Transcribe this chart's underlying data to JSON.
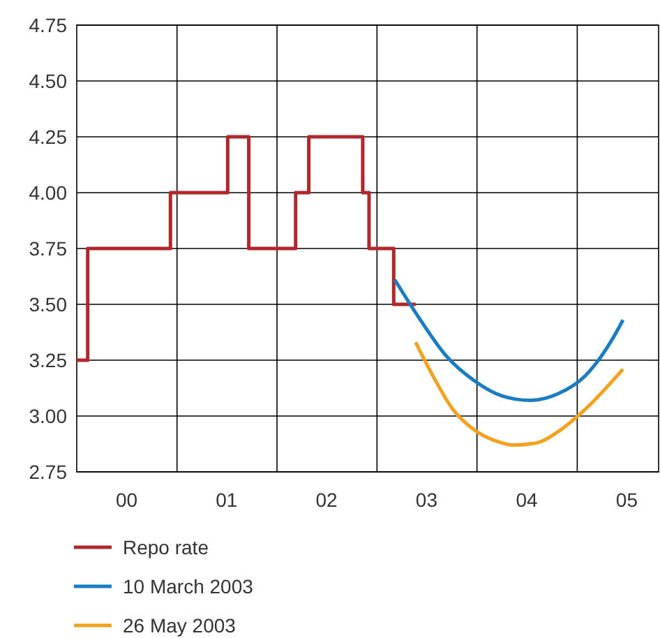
{
  "chart_data": {
    "type": "line",
    "xlim": [
      "2000-01-01",
      "2005-10-25"
    ],
    "ylim": [
      2.75,
      4.75
    ],
    "xticks": [
      {
        "value": "2000-07-01",
        "label": "00"
      },
      {
        "value": "2001-01-01",
        "label": null
      },
      {
        "value": "2001-07-01",
        "label": "01"
      },
      {
        "value": "2002-01-01",
        "label": null
      },
      {
        "value": "2002-07-01",
        "label": "02"
      },
      {
        "value": "2003-01-01",
        "label": null
      },
      {
        "value": "2003-07-01",
        "label": "03"
      },
      {
        "value": "2004-01-01",
        "label": null
      },
      {
        "value": "2004-07-01",
        "label": "04"
      },
      {
        "value": "2005-01-01",
        "label": null
      },
      {
        "value": "2005-07-01",
        "label": "05"
      }
    ],
    "yticks": [
      2.75,
      {
        "value": 3,
        "label": "3.00"
      },
      3.25,
      {
        "value": 3.5,
        "label": "3.50"
      },
      3.75,
      {
        "value": 4,
        "label": "4.00"
      },
      4.25,
      {
        "value": 4.5,
        "label": "4.50"
      },
      4.75
    ],
    "grid": true,
    "legend": "bottom",
    "line_style": "solid",
    "marker": "none",
    "series": [
      {
        "name": "Repo rate",
        "type": "step",
        "color": "#b0282c",
        "x": [
          "2000-01-01",
          "2000-02-10",
          "2000-12-08",
          "2001-07-05",
          "2001-09-20",
          "2002-03-10",
          "2002-04-27",
          "2002-11-10",
          "2002-12-03",
          "2003-03-03",
          "2003-05-22"
        ],
        "values": [
          3.25,
          3.75,
          4.0,
          4.25,
          3.75,
          4.0,
          4.25,
          4.0,
          3.75,
          3.5,
          3.5
        ]
      },
      {
        "name": "10 March 2003",
        "color": "#1a7cc1",
        "x": [
          "2003-03-07",
          "2003-06-03",
          "2003-09-10",
          "2003-12-20",
          "2004-04-01",
          "2004-07-12",
          "2004-10-23",
          "2005-01-30",
          "2005-05-12",
          "2005-06-17"
        ],
        "values": [
          3.61,
          3.44,
          3.27,
          3.16,
          3.09,
          3.07,
          3.1,
          3.18,
          3.35,
          3.43
        ]
      },
      {
        "name": "26 May 2003",
        "color": "#f2a21f",
        "x": [
          "2003-05-22",
          "2003-07-24",
          "2003-10-05",
          "2003-12-20",
          "2004-03-06",
          "2004-05-11",
          "2004-08-07",
          "2004-10-23",
          "2005-01-30",
          "2005-06-17"
        ],
        "values": [
          3.33,
          3.18,
          3.03,
          2.94,
          2.89,
          2.87,
          2.88,
          2.93,
          3.03,
          3.21
        ]
      }
    ]
  }
}
